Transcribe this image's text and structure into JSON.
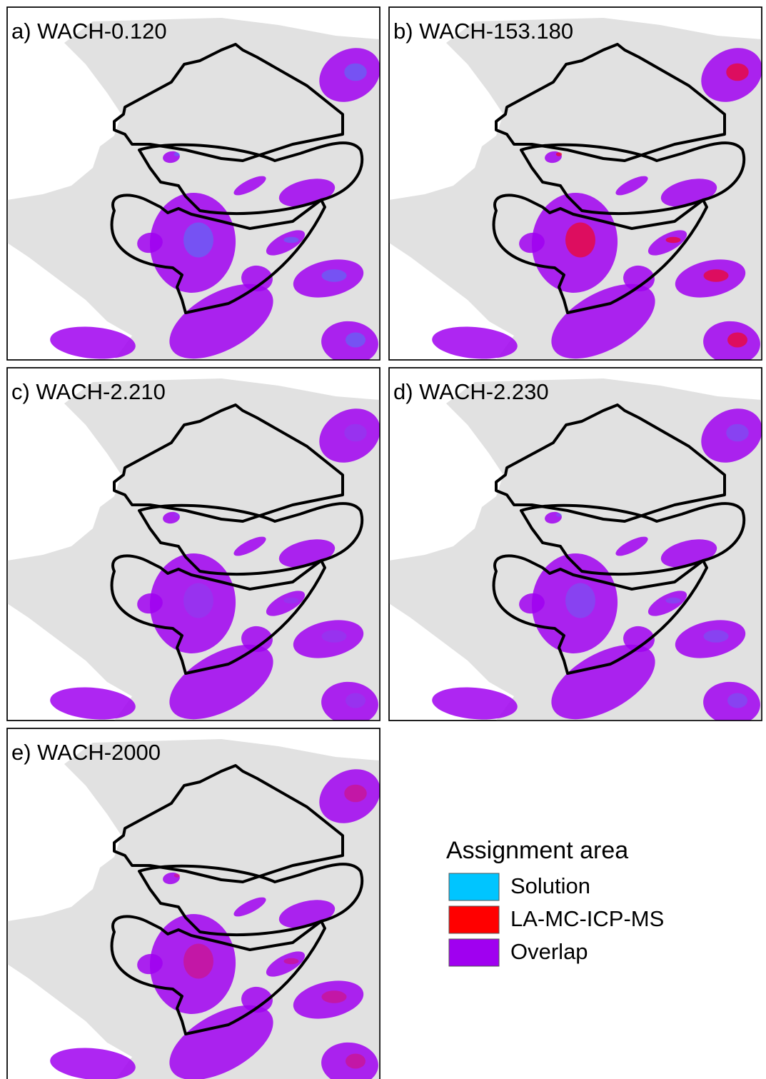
{
  "panels": [
    {
      "label": "a) WACH-0.120"
    },
    {
      "label": "b) WACH-153.180"
    },
    {
      "label": "c) WACH-2.210"
    },
    {
      "label": "d) WACH-2.230"
    },
    {
      "label": "e) WACH-2000"
    }
  ],
  "legend": {
    "title": "Assignment area",
    "items": [
      {
        "label": "Solution",
        "color": "#00c5ff"
      },
      {
        "label": "LA-MC-ICP-MS",
        "color": "#ff0000"
      },
      {
        "label": "Overlap",
        "color": "#a000f0"
      }
    ]
  }
}
